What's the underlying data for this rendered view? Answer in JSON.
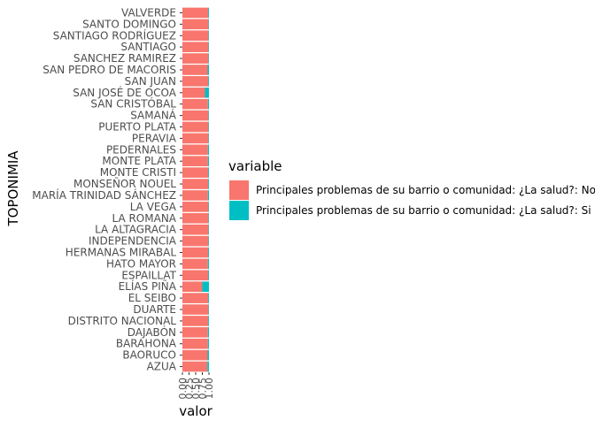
{
  "chart_data": {
    "type": "bar",
    "orientation": "horizontal",
    "stacked": true,
    "xlabel": "valor",
    "ylabel": "TOPONIMIA",
    "xlim": [
      0,
      1
    ],
    "xticks": [
      "0.00",
      "0.25",
      "0.50",
      "0.75",
      "1.00"
    ],
    "grid": false,
    "legend_position": "right",
    "legend_title": "variable",
    "categories": [
      "VALVERDE",
      "SANTO DOMINGO",
      "SANTIAGO RODRÍGUEZ",
      "SANTIAGO",
      "SANCHEZ RAMIREZ",
      "SAN PEDRO DE MACORIS",
      "SAN JUAN",
      "SAN JOSÉ DE OCOA",
      "SAN CRISTÓBAL",
      "SAMANÁ",
      "PUERTO PLATA",
      "PERAVIA",
      "PEDERNALES",
      "MONTE PLATA",
      "MONTE CRISTI",
      "MONSEÑOR NOUEL",
      "MARÍA TRINIDAD SÁNCHEZ",
      "LA VEGA",
      "LA ROMANA",
      "LA ALTAGRACIA",
      "INDEPENDENCIA",
      "HERMANAS MIRABAL",
      "HATO MAYOR",
      "ESPAILLAT",
      "ELÍAS PIÑA",
      "EL SEIBO",
      "DUARTE",
      "DISTRITO NACIONAL",
      "DAJABÓN",
      "BARAHONA",
      "BAORUCO",
      "AZUA"
    ],
    "series": [
      {
        "name": "Principales problemas de su barrio o comunidad: ¿La salud?: No",
        "color": "#F8766D",
        "values": [
          0.97,
          0.98,
          0.98,
          0.98,
          0.98,
          0.95,
          0.97,
          0.85,
          0.96,
          0.98,
          0.98,
          0.98,
          0.96,
          0.96,
          0.97,
          0.97,
          0.96,
          0.98,
          0.98,
          0.98,
          0.98,
          0.97,
          0.96,
          0.97,
          0.75,
          0.97,
          0.98,
          0.97,
          0.96,
          0.96,
          0.95,
          0.94
        ]
      },
      {
        "name": "Principales problemas de su barrio o comunidad: ¿La salud?: Si",
        "color": "#00BFC4",
        "values": [
          0.03,
          0.02,
          0.02,
          0.02,
          0.02,
          0.05,
          0.03,
          0.15,
          0.04,
          0.02,
          0.02,
          0.02,
          0.04,
          0.04,
          0.03,
          0.03,
          0.04,
          0.02,
          0.02,
          0.02,
          0.02,
          0.03,
          0.04,
          0.03,
          0.25,
          0.03,
          0.02,
          0.03,
          0.04,
          0.04,
          0.05,
          0.06
        ]
      }
    ]
  }
}
